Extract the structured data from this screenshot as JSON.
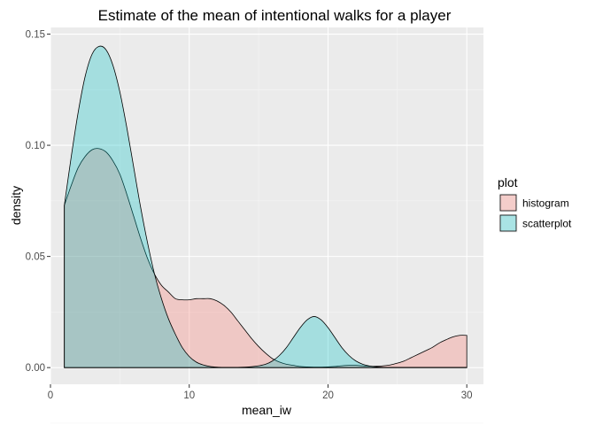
{
  "chart_data": {
    "type": "area",
    "title": "Estimate of the mean of intentional walks for a player",
    "xlabel": "mean_iw",
    "ylabel": "density",
    "xlim": [
      0,
      31.2
    ],
    "ylim": [
      -0.0075,
      0.153
    ],
    "x_ticks": [
      0,
      10,
      20,
      30
    ],
    "x_tick_labels": [
      "0",
      "10",
      "20",
      "30"
    ],
    "y_ticks": [
      0,
      0.05,
      0.1,
      0.15
    ],
    "y_tick_labels": [
      "0.00",
      "0.05",
      "0.10",
      "0.15"
    ],
    "grid": true,
    "legend_position": "right",
    "legend_title": "plot",
    "series": [
      {
        "name": "histogram",
        "color": "#F8766D",
        "fill_alpha": 0.3,
        "x": [
          1,
          1.5,
          2,
          2.5,
          3,
          3.5,
          4,
          4.5,
          5,
          5.5,
          6,
          6.5,
          7,
          7.5,
          8,
          8.5,
          9,
          9.5,
          10,
          10.5,
          11,
          11.5,
          12,
          12.5,
          13,
          13.5,
          14,
          14.5,
          15,
          15.5,
          16,
          16.5,
          17,
          17.5,
          18,
          18.5,
          19,
          19.5,
          20,
          20.5,
          21,
          21.5,
          22,
          22.5,
          23,
          23.5,
          24,
          24.5,
          25,
          25.5,
          26,
          26.5,
          27,
          27.5,
          28,
          28.5,
          29,
          29.5,
          30
        ],
        "values": [
          0.073,
          0.082,
          0.09,
          0.095,
          0.098,
          0.0985,
          0.097,
          0.093,
          0.087,
          0.078,
          0.068,
          0.058,
          0.049,
          0.042,
          0.037,
          0.034,
          0.031,
          0.0305,
          0.0305,
          0.031,
          0.031,
          0.031,
          0.03,
          0.028,
          0.025,
          0.021,
          0.017,
          0.013,
          0.0095,
          0.0065,
          0.004,
          0.0025,
          0.0015,
          0.001,
          0.0005,
          0.0003,
          0.0002,
          0.0002,
          0.0003,
          0.0005,
          0.0008,
          0.001,
          0.001,
          0.0008,
          0.0006,
          0.0006,
          0.0008,
          0.0012,
          0.002,
          0.003,
          0.0045,
          0.006,
          0.0075,
          0.009,
          0.011,
          0.0125,
          0.0138,
          0.0145,
          0.0145
        ]
      },
      {
        "name": "scatterplot",
        "color": "#00BFC4",
        "fill_alpha": 0.3,
        "x": [
          1,
          1.5,
          2,
          2.5,
          3,
          3.5,
          4,
          4.5,
          5,
          5.5,
          6,
          6.5,
          7,
          7.5,
          8,
          8.5,
          9,
          9.5,
          10,
          10.5,
          11,
          11.5,
          12,
          12.5,
          13,
          13.5,
          14,
          14.5,
          15,
          15.5,
          16,
          16.5,
          17,
          17.5,
          18,
          18.5,
          19,
          19.5,
          20,
          20.5,
          21,
          21.5,
          22,
          22.5,
          23,
          23.5,
          24,
          24.5,
          25,
          25.5,
          26,
          26.5,
          27,
          27.5,
          28,
          28.5,
          29,
          29.5,
          30
        ],
        "values": [
          0.073,
          0.095,
          0.115,
          0.131,
          0.141,
          0.1445,
          0.143,
          0.136,
          0.124,
          0.108,
          0.09,
          0.072,
          0.056,
          0.042,
          0.031,
          0.022,
          0.015,
          0.009,
          0.005,
          0.0025,
          0.0012,
          0.0005,
          0.0002,
          0.0001,
          0.0001,
          0.0001,
          0.0002,
          0.0004,
          0.0008,
          0.0015,
          0.003,
          0.0055,
          0.009,
          0.0135,
          0.018,
          0.0215,
          0.023,
          0.0215,
          0.018,
          0.0135,
          0.009,
          0.0055,
          0.003,
          0.0015,
          0.0007,
          0.0003,
          0.0001,
          0.0001,
          0.0001,
          0.0001,
          0.0001,
          0.0001,
          0.0001,
          0.0001,
          0.0001,
          0.0001,
          0.0001,
          0.0001,
          0.0001
        ]
      }
    ]
  }
}
